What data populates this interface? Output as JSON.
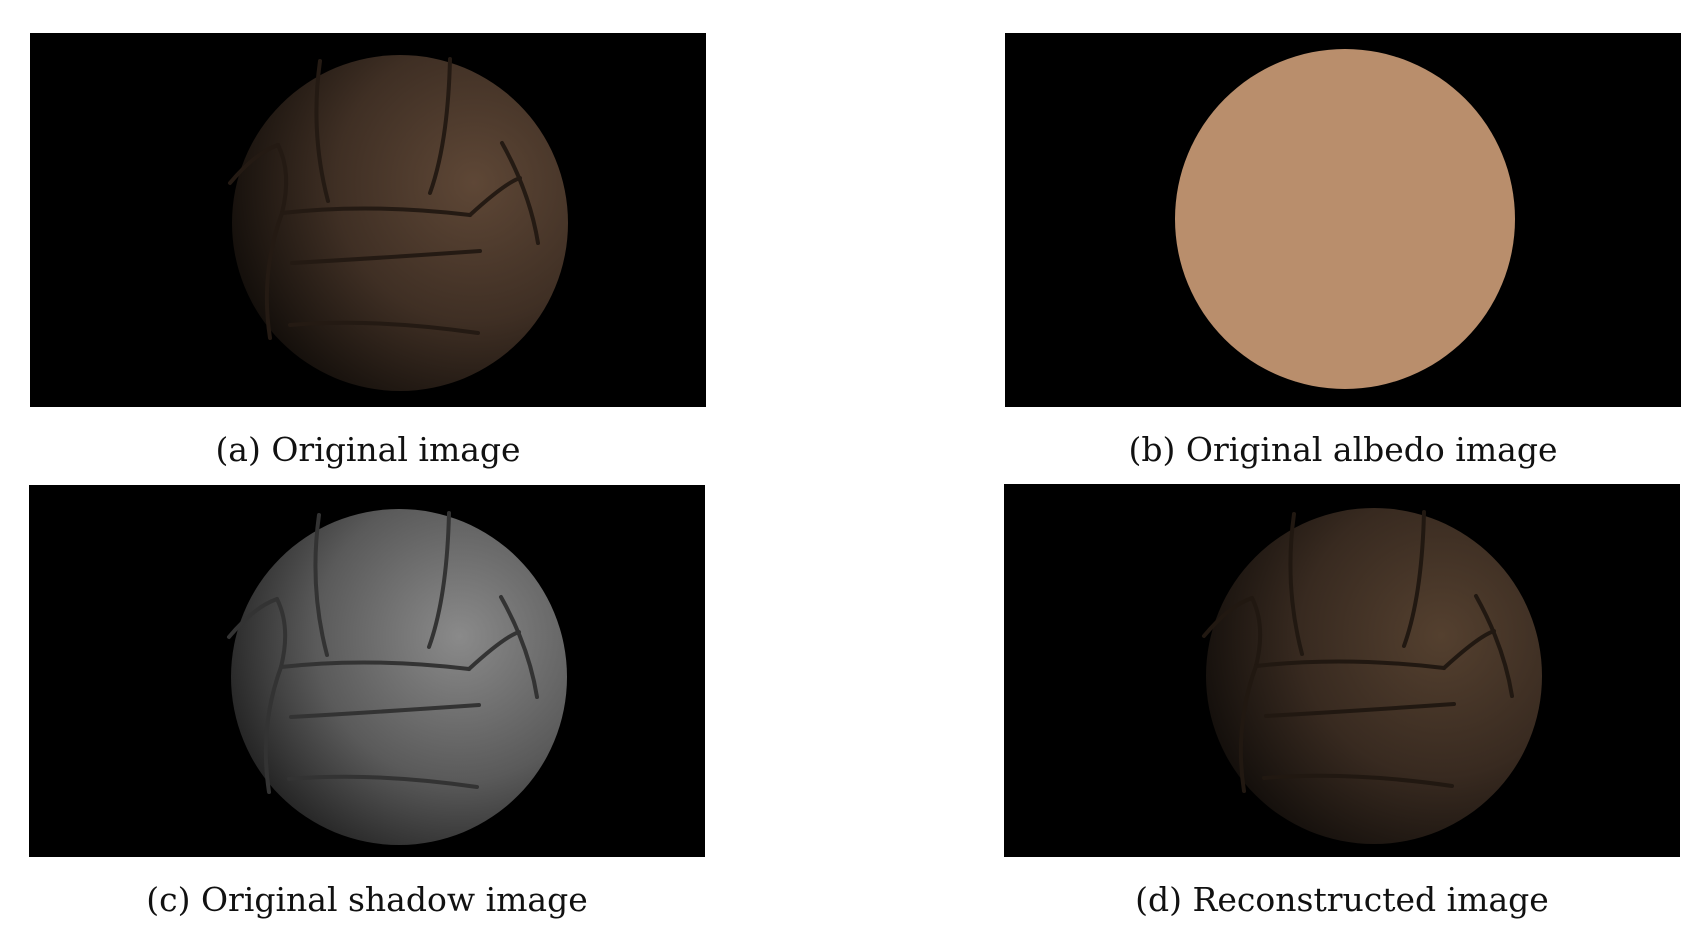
{
  "figure": {
    "panels": [
      {
        "id": "a",
        "caption": "(a) Original image",
        "ball_color": "#5a4434",
        "seam_color": "#2c2018"
      },
      {
        "id": "b",
        "caption": "(b) Original albedo image",
        "ball_color": "#b98e6c"
      },
      {
        "id": "c",
        "caption": "(c) Original shadow image",
        "ball_color": "#7d7d7d",
        "seam_color": "#3a3a3a"
      },
      {
        "id": "d",
        "caption": "(d) Reconstructed image",
        "ball_color": "#4f3c2e",
        "seam_color": "#261c15"
      }
    ]
  }
}
